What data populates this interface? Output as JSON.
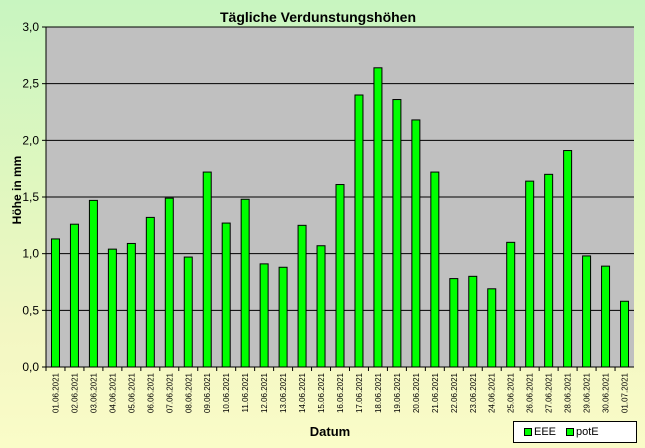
{
  "chart_data": {
    "type": "bar",
    "title": "Tägliche Verdunstungshöhen",
    "xlabel": "Datum",
    "ylabel": "Höhe in mm",
    "ylim": [
      0,
      3
    ],
    "yticks": [
      "0,0",
      "0,5",
      "1,0",
      "1,5",
      "2,0",
      "2,5",
      "3,0"
    ],
    "categories": [
      "01.06.2021",
      "02.06.2021",
      "03.06.2021",
      "04.06.2021",
      "05.06.2021",
      "06.06.2021",
      "07.06.2021",
      "08.06.2021",
      "09.06.2021",
      "10.06.2021",
      "11.06.2021",
      "12.06.2021",
      "13.06.2021",
      "14.06.2021",
      "15.06.2021",
      "16.06.2021",
      "17.06.2021",
      "18.06.2021",
      "19.06.2021",
      "20.06.2021",
      "21.06.2021",
      "22.06.2021",
      "23.06.2021",
      "24.06.2021",
      "25.06.2021",
      "26.06.2021",
      "27.06.2021",
      "28.06.2021",
      "29.06.2021",
      "30.06.2021",
      "01.07.2021"
    ],
    "series": [
      {
        "name": "potE",
        "color": "#00ff00",
        "values": [
          1.13,
          1.26,
          1.47,
          1.04,
          1.09,
          1.32,
          1.49,
          0.97,
          1.72,
          1.27,
          1.48,
          0.91,
          0.88,
          1.25,
          1.07,
          1.61,
          2.4,
          2.64,
          2.36,
          2.18,
          1.72,
          0.78,
          0.8,
          0.69,
          1.1,
          1.64,
          1.7,
          1.91,
          0.98,
          0.89,
          0.58
        ]
      }
    ],
    "legend": {
      "position": "bottom-right",
      "entries": [
        "EEE",
        "potE"
      ]
    },
    "grid": true,
    "colors": {
      "plot_bg": "#c0c0c0",
      "bar": "#00ff00",
      "gridline": "#000000"
    }
  }
}
